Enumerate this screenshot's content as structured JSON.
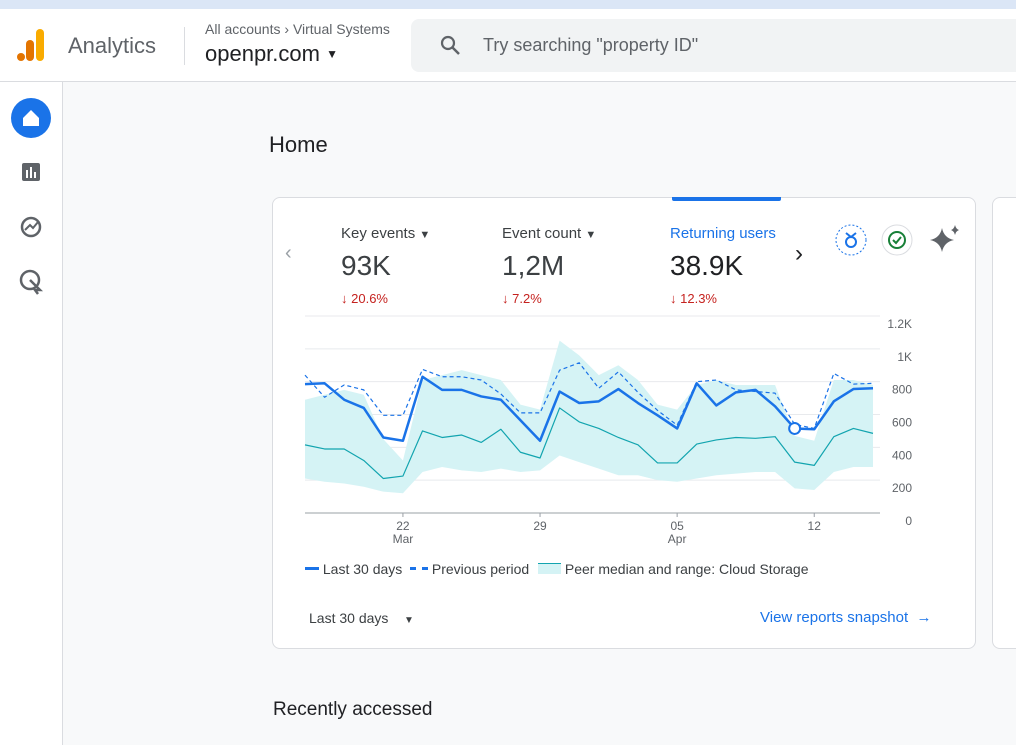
{
  "header": {
    "app_name": "Analytics",
    "breadcrumb": [
      "All accounts",
      "Virtual Systems"
    ],
    "property": "openpr.com",
    "search_placeholder": "Try searching \"property ID\""
  },
  "page_title": "Home",
  "metrics": [
    {
      "label": "Key events",
      "value": "93K",
      "change": "20.6%"
    },
    {
      "label": "Event count",
      "value": "1,2M",
      "change": "7.2%"
    },
    {
      "label": "Returning users",
      "value": "38.9K",
      "change": "12.3%"
    }
  ],
  "chart_data": {
    "type": "line",
    "categories": [
      null,
      null,
      null,
      null,
      null,
      "22",
      null,
      null,
      null,
      null,
      null,
      null,
      "29",
      null,
      null,
      null,
      null,
      null,
      null,
      "05",
      null,
      null,
      null,
      null,
      null,
      null,
      "12",
      null,
      null,
      null
    ],
    "month_labels": [
      null,
      null,
      null,
      null,
      null,
      "Mar",
      null,
      null,
      null,
      null,
      null,
      null,
      null,
      null,
      null,
      null,
      null,
      null,
      null,
      "Apr",
      null,
      null,
      null,
      null,
      null,
      null,
      null,
      null,
      null,
      null
    ],
    "ylim": [
      0,
      1200
    ],
    "yticks": [
      0,
      200,
      400,
      600,
      800,
      {
        "value": 1000,
        "label": "1K"
      },
      {
        "value": 1200,
        "label": "1.2K"
      }
    ],
    "grid": true,
    "series": [
      {
        "name": "Last 30 days",
        "color": "#1a73e8",
        "style": "solid",
        "values": [
          785,
          790,
          690,
          640,
          460,
          440,
          830,
          750,
          750,
          710,
          690,
          565,
          440,
          740,
          670,
          680,
          755,
          670,
          595,
          515,
          790,
          655,
          735,
          750,
          650,
          515,
          510,
          680,
          755,
          760
        ]
      },
      {
        "name": "Previous period",
        "color": "#1a73e8",
        "style": "dashed",
        "values": [
          840,
          705,
          780,
          750,
          595,
          595,
          875,
          830,
          830,
          810,
          725,
          610,
          610,
          870,
          915,
          760,
          860,
          735,
          625,
          535,
          800,
          810,
          750,
          740,
          730,
          540,
          515,
          850,
          785,
          790
        ]
      },
      {
        "name": "Peer median and range: Cloud Storage",
        "color": "#12a4af",
        "band_color": "#d5f3f5",
        "style": "solid",
        "values": [
          415,
          390,
          390,
          320,
          210,
          225,
          500,
          460,
          475,
          430,
          510,
          370,
          335,
          640,
          555,
          515,
          460,
          415,
          305,
          305,
          420,
          445,
          460,
          455,
          465,
          310,
          290,
          465,
          515,
          485
        ],
        "high": [
          690,
          720,
          750,
          720,
          450,
          320,
          810,
          840,
          870,
          840,
          810,
          660,
          630,
          1050,
          960,
          840,
          900,
          810,
          660,
          630,
          780,
          810,
          780,
          780,
          780,
          470,
          440,
          810,
          810,
          780
        ],
        "low": [
          210,
          190,
          180,
          160,
          130,
          120,
          250,
          280,
          260,
          250,
          270,
          250,
          260,
          350,
          310,
          270,
          230,
          230,
          200,
          190,
          210,
          230,
          240,
          250,
          250,
          150,
          140,
          250,
          280,
          280
        ]
      }
    ]
  },
  "date_range": "Last 30 days",
  "snapshot_link": "View reports snapshot",
  "section_title": "Recently accessed"
}
